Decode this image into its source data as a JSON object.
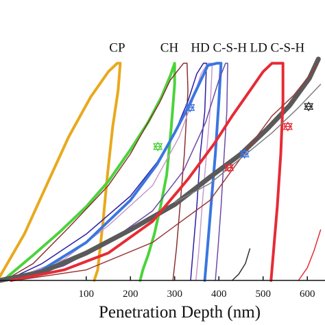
{
  "chart_data": {
    "type": "line",
    "title": "",
    "xlabel": "Penetration Depth (nm)",
    "ylabel": "",
    "xlim": [
      -95,
      640
    ],
    "ylim": [
      0,
      12
    ],
    "xticks": [
      "100",
      "200",
      "300",
      "400",
      "500",
      "600"
    ],
    "xtick_values": [
      100,
      200,
      300,
      400,
      500,
      600
    ],
    "grid": false,
    "legend": "none",
    "annotations": [
      {
        "text": "CP",
        "x": 170,
        "y": 10.85
      },
      {
        "text": "CH",
        "x": 288,
        "y": 10.85
      },
      {
        "text": "HD C-S-H",
        "x": 400,
        "y": 10.85
      },
      {
        "text": "LD C-S-H",
        "x": 532,
        "y": 10.85
      }
    ],
    "series": [
      {
        "label": "CP",
        "color": "#e8a91d",
        "width": 4,
        "loading": [
          [
            -95,
            0.2
          ],
          [
            -40,
            2.2
          ],
          [
            10,
            4.5
          ],
          [
            60,
            6.8
          ],
          [
            110,
            8.7
          ],
          [
            150,
            9.9
          ],
          [
            170,
            10.3
          ]
        ],
        "unloading": [
          [
            177,
            10.3
          ],
          [
            172,
            9
          ],
          [
            160,
            7.3
          ],
          [
            148,
            5
          ],
          [
            138,
            2.8
          ],
          [
            126,
            0.5
          ],
          [
            118,
            0
          ]
        ]
      },
      {
        "label": "CH",
        "color": "#4cd33c",
        "width": 4,
        "loading": [
          [
            -88,
            0
          ],
          [
            -20,
            1.2
          ],
          [
            40,
            2.3
          ],
          [
            100,
            3.5
          ],
          [
            150,
            4.7
          ],
          [
            200,
            6.2
          ],
          [
            240,
            7.5
          ],
          [
            270,
            8.7
          ],
          [
            290,
            9.7
          ],
          [
            300,
            10.3
          ]
        ],
        "unloading": [
          [
            300,
            10.3
          ],
          [
            300,
            9.3
          ],
          [
            292,
            7.2
          ],
          [
            282,
            5
          ],
          [
            268,
            3.5
          ],
          [
            254,
            2.2
          ],
          [
            240,
            1.2
          ],
          [
            228,
            0.5
          ],
          [
            222,
            0
          ]
        ]
      },
      {
        "label": "",
        "color": "#8b2f2f",
        "width": 1.5,
        "loading": [
          [
            -85,
            0
          ],
          [
            -20,
            0.8
          ],
          [
            60,
            2.5
          ],
          [
            150,
            4.5
          ],
          [
            200,
            6
          ],
          [
            240,
            7.5
          ],
          [
            265,
            8.4
          ],
          [
            290,
            9.5
          ],
          [
            320,
            10.3
          ]
        ],
        "unloading": [
          [
            328,
            10.3
          ],
          [
            330,
            9
          ],
          [
            322,
            6
          ],
          [
            312,
            3.5
          ],
          [
            304,
            1.5
          ],
          [
            296,
            0
          ]
        ]
      },
      {
        "label": "",
        "color": "#2b1ca3",
        "width": 1.5,
        "loading": [
          [
            -80,
            0
          ],
          [
            0,
            0.8
          ],
          [
            100,
            2.2
          ],
          [
            200,
            4
          ],
          [
            260,
            5.6
          ],
          [
            300,
            7
          ],
          [
            330,
            8.5
          ],
          [
            350,
            9.8
          ],
          [
            365,
            10.3
          ]
        ],
        "unloading": [
          [
            372,
            10.3
          ],
          [
            368,
            8
          ],
          [
            358,
            6
          ],
          [
            350,
            3.5
          ],
          [
            342,
            1.5
          ],
          [
            336,
            0
          ]
        ]
      },
      {
        "label": "",
        "color": "#c69ac9",
        "width": 1.5,
        "loading": [
          [
            -75,
            0
          ],
          [
            50,
            1
          ],
          [
            150,
            2.6
          ],
          [
            250,
            4.5
          ],
          [
            310,
            6.8
          ],
          [
            340,
            8.5
          ],
          [
            360,
            9.8
          ],
          [
            375,
            10.3
          ]
        ],
        "unloading": [
          [
            385,
            10.3
          ],
          [
            380,
            8
          ],
          [
            372,
            6
          ],
          [
            362,
            3.5
          ],
          [
            355,
            1.5
          ],
          [
            348,
            0
          ]
        ]
      },
      {
        "label": "HD C-S-H",
        "color": "#3b76e0",
        "width": 4,
        "loading": [
          [
            -70,
            0
          ],
          [
            0,
            0.5
          ],
          [
            100,
            1.8
          ],
          [
            200,
            3.8
          ],
          [
            260,
            5.5
          ],
          [
            300,
            7
          ],
          [
            330,
            8.2
          ],
          [
            355,
            9.3
          ],
          [
            375,
            10.2
          ],
          [
            395,
            10.3
          ]
        ],
        "unloading": [
          [
            405,
            10.3
          ],
          [
            400,
            8.5
          ],
          [
            392,
            6
          ],
          [
            382,
            3.5
          ],
          [
            374,
            1.5
          ],
          [
            368,
            0
          ]
        ]
      },
      {
        "label": "",
        "color": "#6a4aa8",
        "width": 1.5,
        "loading": [
          [
            -60,
            0
          ],
          [
            50,
            0.7
          ],
          [
            150,
            1.8
          ],
          [
            250,
            3.3
          ],
          [
            320,
            5.2
          ],
          [
            370,
            7.5
          ],
          [
            400,
            9.5
          ],
          [
            415,
            10.3
          ]
        ],
        "unloading": [
          [
            420,
            10.3
          ],
          [
            418,
            8
          ],
          [
            412,
            6
          ],
          [
            405,
            3.5
          ],
          [
            398,
            1.5
          ],
          [
            392,
            0
          ]
        ]
      },
      {
        "label": "",
        "color": "#5a5a5a",
        "width": 7,
        "loading": [
          [
            -95,
            0
          ],
          [
            0,
            0.4
          ],
          [
            100,
            1.3
          ],
          [
            200,
            2.4
          ],
          [
            300,
            3.6
          ],
          [
            380,
            4.9
          ],
          [
            450,
            6
          ],
          [
            510,
            7.2
          ],
          [
            560,
            8.3
          ],
          [
            605,
            9.6
          ],
          [
            625,
            10.5
          ]
        ],
        "unloading": []
      },
      {
        "label": "LD C-S-H",
        "color": "#e62b35",
        "width": 4,
        "loading": [
          [
            -70,
            0
          ],
          [
            50,
            0.5
          ],
          [
            150,
            1.3
          ],
          [
            250,
            2.8
          ],
          [
            330,
            4.8
          ],
          [
            390,
            6.5
          ],
          [
            430,
            7.8
          ],
          [
            470,
            9
          ],
          [
            500,
            9.9
          ],
          [
            520,
            10.3
          ]
        ],
        "unloading": [
          [
            545,
            10.3
          ],
          [
            545,
            8.5
          ],
          [
            540,
            6
          ],
          [
            532,
            3.5
          ],
          [
            524,
            1.5
          ],
          [
            518,
            0
          ]
        ]
      },
      {
        "label": "",
        "color": "#9c3a3a",
        "width": 1.5,
        "loading": [
          [
            -60,
            0
          ],
          [
            100,
            0.5
          ],
          [
            250,
            1.8
          ],
          [
            380,
            3.8
          ],
          [
            460,
            6.1
          ],
          [
            520,
            7.8
          ],
          [
            570,
            8.8
          ],
          [
            600,
            9.6
          ],
          [
            625,
            10.3
          ]
        ],
        "unloading": []
      },
      {
        "label": "",
        "color": "#808080",
        "width": 1.5,
        "loading": [
          [
            300,
            3.7
          ],
          [
            380,
            4.6
          ],
          [
            450,
            5.8
          ],
          [
            520,
            7.0
          ],
          [
            580,
            8.2
          ],
          [
            630,
            9.3
          ]
        ],
        "unloading": []
      },
      {
        "label": "",
        "color": "#303030",
        "width": 1.5,
        "loading": [
          [
            430,
            0
          ],
          [
            445,
            0.3
          ],
          [
            460,
            0.8
          ],
          [
            470,
            1.5
          ]
        ],
        "unloading": []
      },
      {
        "label": "",
        "color": "#e62b35",
        "width": 1.5,
        "loading": [
          [
            580,
            0
          ],
          [
            600,
            0.6
          ],
          [
            615,
            1.4
          ],
          [
            630,
            2.4
          ]
        ],
        "unloading": []
      }
    ],
    "markers": [
      {
        "x": 262,
        "y": 6.35,
        "color": "#4cd33c"
      },
      {
        "x": 335,
        "y": 8.2,
        "color": "#3b76e0"
      },
      {
        "x": 423,
        "y": 5.35,
        "color": "#e62b35"
      },
      {
        "x": 458,
        "y": 6.0,
        "color": "#3b76e0"
      },
      {
        "x": 556,
        "y": 7.3,
        "color": "#e62b35"
      },
      {
        "x": 603,
        "y": 8.25,
        "color": "#303030"
      }
    ]
  }
}
